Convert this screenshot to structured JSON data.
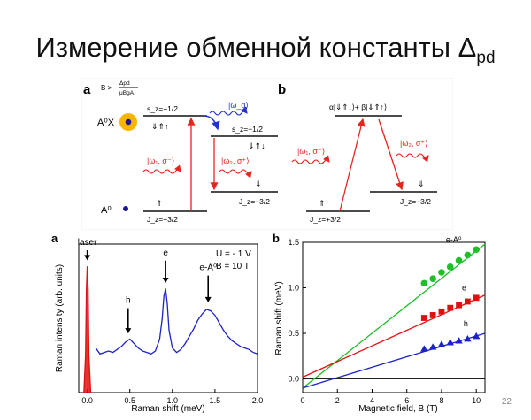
{
  "slide": {
    "title_main": "Измерение обменной константы Δ",
    "title_sub": "pd",
    "page_number": "22"
  },
  "diagram_a": {
    "panel_label": "a",
    "condition_prefix": "B >",
    "condition_num": "Δpd",
    "condition_den": "μBgA",
    "acceptor_exciton_label": "A⁰X",
    "acceptor_label": "A⁰",
    "sz_plus": "s_z=+1/2",
    "sz_plus_spins": "⇓⇑↑",
    "sz_minus": "s_z=−1/2",
    "sz_minus_spins": "⇓⇑↓",
    "omega_q": "|ω_q⟩",
    "omega1": "|ω₁, σ⁻⟩",
    "omega2": "|ω₂, σ⁺⟩",
    "jz_plus": "J_z=+3/2",
    "jz_plus_spin": "⇑",
    "jz_minus": "J_z=−3/2",
    "jz_minus_spin": "⇓",
    "colors": {
      "exciton": "#f7b500",
      "red": "#e8241e",
      "blue": "#2233cc"
    }
  },
  "diagram_b": {
    "panel_label": "b",
    "top_state": "α|⇓⇑↓⟩+ β|⇓⇑↑⟩",
    "omega1": "|ω₁, σ⁻⟩",
    "omega2": "|ω₂, σ⁺⟩",
    "jz_plus": "J_z=+3/2",
    "jz_plus_spin": "⇑",
    "jz_minus": "J_z=−3/2",
    "jz_minus_spin": "⇓"
  },
  "chart_data": [
    {
      "type": "line",
      "panel_label": "a",
      "xlabel": "Raman shift (meV)",
      "ylabel": "Raman intensity (arb. units)",
      "xlim": [
        -0.1,
        2.0
      ],
      "x_ticks": [
        "0.0",
        "0.5",
        "1.0",
        "1.5",
        "2.0"
      ],
      "annotations": [
        "U = - 1 V",
        "B = 10 T"
      ],
      "peak_labels": [
        {
          "text": "laser",
          "x": 0.0
        },
        {
          "text": "h",
          "x": 0.48
        },
        {
          "text": "e",
          "x": 0.92
        },
        {
          "text": "e-A⁰",
          "x": 1.42
        }
      ],
      "series": [
        {
          "color": "#1c22c8",
          "x": [
            0.1,
            0.15,
            0.2,
            0.25,
            0.3,
            0.35,
            0.4,
            0.45,
            0.5,
            0.55,
            0.6,
            0.65,
            0.7,
            0.75,
            0.8,
            0.85,
            0.88,
            0.9,
            0.92,
            0.94,
            0.96,
            1.0,
            1.05,
            1.1,
            1.15,
            1.2,
            1.25,
            1.3,
            1.35,
            1.4,
            1.45,
            1.5,
            1.55,
            1.6,
            1.65,
            1.7,
            1.75,
            1.8,
            1.85,
            1.9,
            1.95,
            2.0
          ],
          "y": [
            0.3,
            0.26,
            0.27,
            0.28,
            0.27,
            0.29,
            0.31,
            0.34,
            0.36,
            0.33,
            0.3,
            0.28,
            0.27,
            0.26,
            0.28,
            0.36,
            0.5,
            0.65,
            0.7,
            0.6,
            0.42,
            0.3,
            0.27,
            0.29,
            0.33,
            0.38,
            0.43,
            0.49,
            0.53,
            0.56,
            0.55,
            0.52,
            0.47,
            0.42,
            0.38,
            0.35,
            0.33,
            0.31,
            0.3,
            0.29,
            0.27,
            0.26
          ]
        },
        {
          "color": "#e01010",
          "x": [
            -0.04,
            -0.02,
            -0.01,
            0.0,
            0.01,
            0.02,
            0.04
          ],
          "y": [
            0.0,
            0.25,
            0.7,
            0.85,
            0.7,
            0.25,
            0.0
          ]
        }
      ]
    },
    {
      "type": "scatter",
      "panel_label": "b",
      "xlabel": "Magnetic field, B (T)",
      "ylabel": "Raman shift (meV)",
      "xlim": [
        0,
        10.5
      ],
      "ylim": [
        -0.15,
        1.5
      ],
      "x_ticks": [
        "0",
        "2",
        "4",
        "6",
        "8",
        "10"
      ],
      "y_ticks": [
        "0.0",
        "0.5",
        "1.0",
        "1.5"
      ],
      "series": [
        {
          "name": "e-A⁰",
          "color": "#1fbf2a",
          "marker": "circle",
          "x": [
            7,
            7.5,
            8,
            8.5,
            9,
            9.5,
            10
          ],
          "y": [
            1.05,
            1.1,
            1.17,
            1.23,
            1.3,
            1.36,
            1.42
          ],
          "fit": [
            [
              0,
              -0.1
            ],
            [
              10.5,
              1.48
            ]
          ]
        },
        {
          "name": "e",
          "color": "#e01010",
          "marker": "square",
          "x": [
            7,
            7.5,
            8,
            8.5,
            9,
            9.5,
            10
          ],
          "y": [
            0.67,
            0.7,
            0.74,
            0.78,
            0.81,
            0.85,
            0.89
          ],
          "fit": [
            [
              0,
              0.02
            ],
            [
              10.5,
              0.92
            ]
          ]
        },
        {
          "name": "h",
          "color": "#1c22c8",
          "marker": "triangle",
          "x": [
            7,
            7.5,
            8,
            8.5,
            9,
            9.5,
            10
          ],
          "y": [
            0.33,
            0.35,
            0.38,
            0.4,
            0.42,
            0.44,
            0.47
          ],
          "fit": [
            [
              0,
              -0.1
            ],
            [
              10.5,
              0.5
            ]
          ]
        }
      ]
    }
  ]
}
